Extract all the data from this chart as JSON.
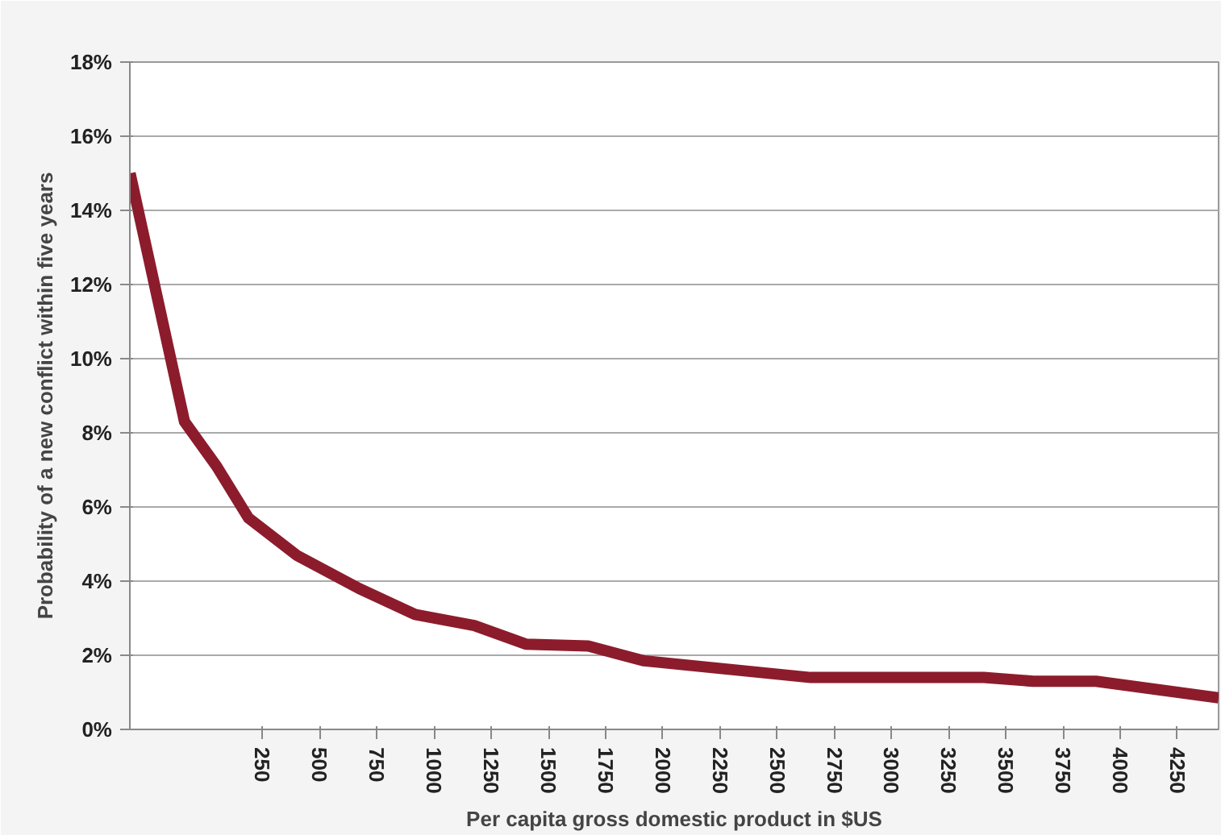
{
  "chart_data": {
    "type": "line",
    "xlabel": "Per capita gross domestic product in $US",
    "ylabel": "Probability of a new conflict within five years",
    "x": [
      -329,
      -91,
      49,
      189,
      399,
      672,
      917,
      1176,
      1401,
      1674,
      1919,
      2647,
      3403,
      3620,
      3894,
      4430
    ],
    "series": [
      {
        "color": "#8c1c2c",
        "values": [
          15.0,
          8.3,
          7.1,
          5.7,
          4.7,
          3.8,
          3.1,
          2.8,
          2.3,
          2.25,
          1.85,
          1.4,
          1.4,
          1.3,
          1.3,
          0.85
        ]
      }
    ],
    "xlim": [
      -330,
      4430
    ],
    "xticks": [
      250,
      500,
      750,
      1000,
      1250,
      1500,
      1750,
      2000,
      2250,
      2500,
      2750,
      3000,
      3250,
      3500,
      3750,
      4000,
      4250
    ],
    "ylim": [
      0,
      18
    ],
    "yticks": [
      {
        "value": 0,
        "label": "0%"
      },
      {
        "value": 2,
        "label": "2%"
      },
      {
        "value": 4,
        "label": "4%"
      },
      {
        "value": 6,
        "label": "6%"
      },
      {
        "value": 8,
        "label": "8%"
      },
      {
        "value": 10,
        "label": "10%"
      },
      {
        "value": 12,
        "label": "12%"
      },
      {
        "value": 14,
        "label": "14%"
      },
      {
        "value": 16,
        "label": "16%"
      },
      {
        "value": 18,
        "label": "18%"
      }
    ],
    "grid": "y",
    "marker": "none",
    "line_style": "solid"
  }
}
